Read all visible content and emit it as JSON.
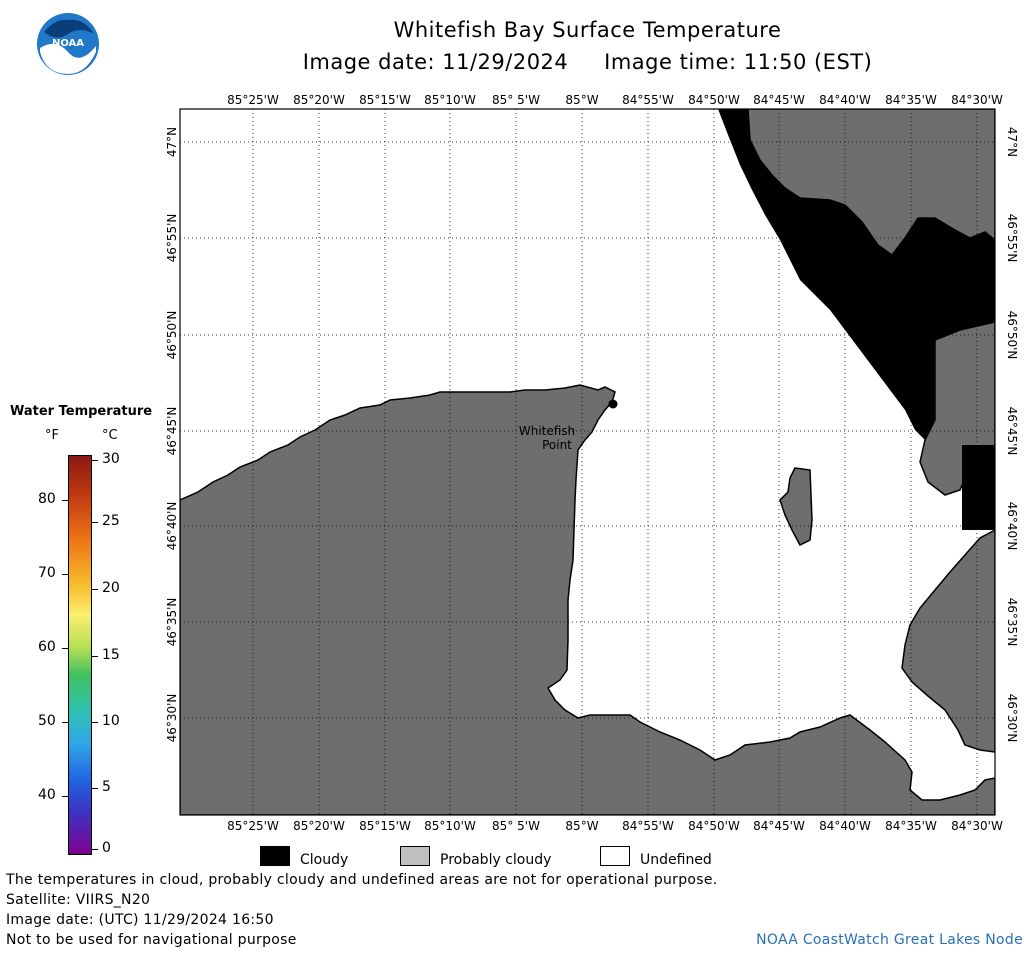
{
  "header": {
    "title": "Whitefish Bay Surface Temperature",
    "image_date_line": "Image date: 11/29/2024     Image time: 11:50 (EST)"
  },
  "logo": {
    "text": "NOAA",
    "icon": "noaa-logo"
  },
  "map": {
    "lon_labels": [
      "85°25'W",
      "85°20'W",
      "85°15'W",
      "85°10'W",
      "85° 5'W",
      "85°W",
      "84°55'W",
      "84°50'W",
      "84°45'W",
      "84°40'W",
      "84°35'W",
      "84°30'W"
    ],
    "lat_labels": [
      "47°N",
      "46°55'N",
      "46°50'N",
      "46°45'N",
      "46°40'N",
      "46°35'N",
      "46°30'N"
    ],
    "place_label_line1": "Whitefish",
    "place_label_line2": "Point",
    "colors": {
      "land": "#6e6e6e",
      "cloud": "#000000",
      "undefined": "#ffffff",
      "grid": "#000000"
    }
  },
  "colorbar": {
    "title": "Water Temperature",
    "unit_f": "°F",
    "unit_c": "°C",
    "f_ticks": [
      "80",
      "70",
      "60",
      "50",
      "40"
    ],
    "c_ticks": [
      "30",
      "25",
      "20",
      "15",
      "10",
      "5",
      "0"
    ]
  },
  "legend": {
    "cloudy": "Cloudy",
    "probably_cloudy": "Probably cloudy",
    "undefined": "Undefined"
  },
  "footer": {
    "line1": "The temperatures in cloud, probably cloudy and undefined areas are not for operational purpose.",
    "line2": "Satellite: VIIRS_N20",
    "line3": "Image date: (UTC) 11/29/2024  16:50",
    "line4": "Not to be used for navigational purpose",
    "credit": "NOAA CoastWatch Great Lakes Node"
  }
}
